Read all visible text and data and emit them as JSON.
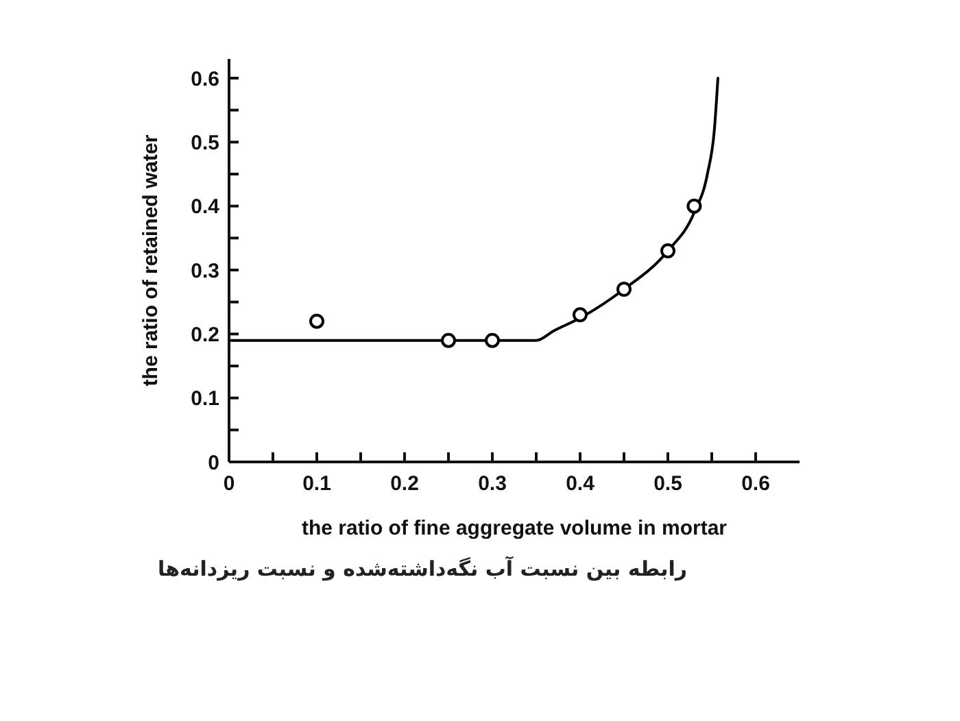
{
  "chart_data": {
    "type": "scatter",
    "xlabel": "the ratio of fine aggregate volume in mortar",
    "ylabel": "the ratio of retained water",
    "annotations": [
      "رابطه بین نسبت آب نگه‌داشته‌شده و نسبت ریزدانه‌ها"
    ],
    "series": [
      {
        "color": "#000000",
        "marker": "circle",
        "x": [
          0.1,
          0.25,
          0.3,
          0.4,
          0.45,
          0.5,
          0.53
        ],
        "values": [
          0.22,
          0.19,
          0.19,
          0.23,
          0.27,
          0.33,
          0.4
        ]
      },
      {
        "type": "line",
        "color": "#000000",
        "marker": "none",
        "x": [
          0,
          0.35,
          0.37,
          0.4,
          0.45,
          0.5,
          0.53,
          0.545,
          0.553,
          0.557
        ],
        "values": [
          0.19,
          0.19,
          0.205,
          0.225,
          0.27,
          0.33,
          0.39,
          0.45,
          0.52,
          0.6
        ]
      }
    ],
    "xlim": [
      0,
      0.65
    ],
    "xticks": [
      0,
      {
        "value": 0.05,
        "label": null
      },
      0.1,
      {
        "value": 0.15,
        "label": null
      },
      0.2,
      {
        "value": 0.25,
        "label": null
      },
      0.3,
      {
        "value": 0.35,
        "label": null
      },
      0.4,
      {
        "value": 0.45,
        "label": null
      },
      0.5,
      {
        "value": 0.55,
        "label": null
      },
      0.6
    ],
    "ylim": [
      0,
      0.63
    ],
    "yticks": [
      0,
      {
        "value": 0.05,
        "label": null
      },
      0.1,
      {
        "value": 0.15,
        "label": null
      },
      0.2,
      {
        "value": 0.25,
        "label": null
      },
      0.3,
      {
        "value": 0.35,
        "label": null
      },
      0.4,
      {
        "value": 0.45,
        "label": null
      },
      0.5,
      {
        "value": 0.55,
        "label": null
      },
      0.6
    ]
  }
}
